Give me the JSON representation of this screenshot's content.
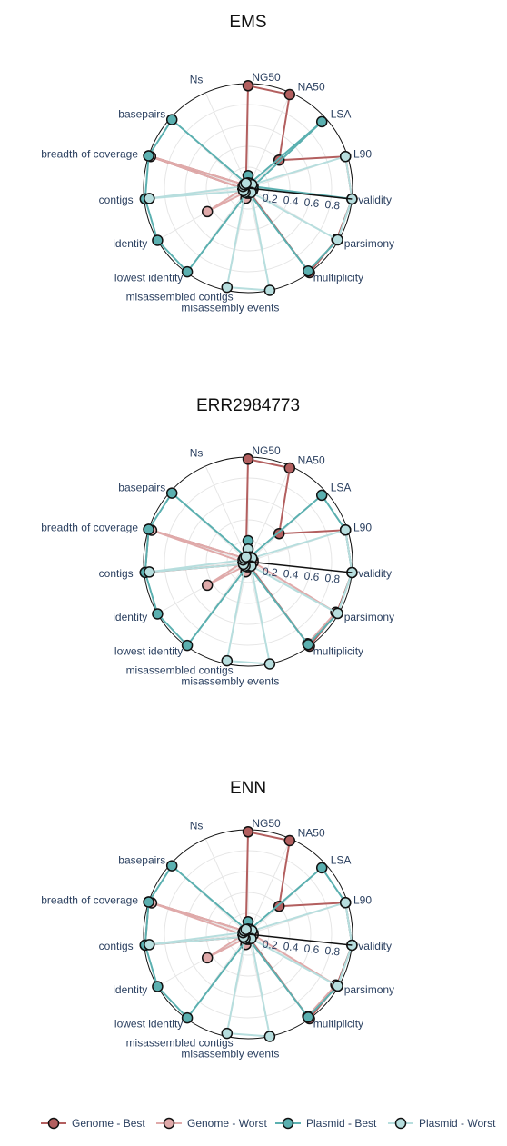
{
  "colors": {
    "genome_best": "#b35f5f",
    "genome_worst": "#e0aaaa",
    "plasmid_best": "#5bb0b0",
    "plasmid_worst": "#b7dede",
    "grid": "#e6e6e6",
    "outline": "#111111",
    "text": "#2a3f5f"
  },
  "chart_data": [
    {
      "type": "radar",
      "title": "EMS",
      "axes": [
        "NG50",
        "NA50",
        "LSA",
        "L90",
        "validity",
        "parsimony",
        "multiplicity",
        "misassembly events",
        "misassembled contigs",
        "lowest identity",
        "identity",
        "contigs",
        "breadth of coverage",
        "basepairs",
        "Ns"
      ],
      "radial_ticks": [
        "0.2",
        "0.4",
        "0.6",
        "0.8"
      ],
      "radial_range": [
        0,
        1
      ],
      "series": [
        {
          "name": "Genome - Best",
          "values": [
            0.98,
            0.98,
            0.4,
            0.98,
            1.0,
            0.98,
            1.0,
            0.03,
            0.05,
            0.05,
            0.05,
            0.05,
            1.0,
            0.05,
            0.05
          ]
        },
        {
          "name": "Genome - Worst",
          "values": [
            0.05,
            0.05,
            0.05,
            0.05,
            0.05,
            0.05,
            0.05,
            0.05,
            0.1,
            0.05,
            0.45,
            0.05,
            0.98,
            0.05,
            0.05
          ]
        },
        {
          "name": "Plasmid - Best",
          "values": [
            0.12,
            0.05,
            0.95,
            0.05,
            1.0,
            0.99,
            0.98,
            0.05,
            0.05,
            0.99,
            1.0,
            0.99,
            1.0,
            0.98,
            0.05
          ]
        },
        {
          "name": "Plasmid - Worst",
          "values": [
            0.05,
            0.05,
            0.05,
            0.98,
            1.0,
            0.99,
            0.05,
            1.0,
            0.97,
            0.05,
            0.05,
            0.95,
            0.05,
            0.05,
            0.05
          ]
        }
      ]
    },
    {
      "type": "radar",
      "title": "ERR2984773",
      "axes": [
        "NG50",
        "NA50",
        "LSA",
        "L90",
        "validity",
        "parsimony",
        "multiplicity",
        "misassembly events",
        "misassembled contigs",
        "lowest identity",
        "identity",
        "contigs",
        "breadth of coverage",
        "basepairs",
        "Ns"
      ],
      "radial_ticks": [
        "0.2",
        "0.4",
        "0.6",
        "0.8"
      ],
      "radial_range": [
        0,
        1
      ],
      "series": [
        {
          "name": "Genome - Best",
          "values": [
            0.98,
            0.98,
            0.4,
            0.98,
            1.0,
            0.98,
            1.0,
            0.03,
            0.05,
            0.05,
            0.05,
            0.99,
            1.0,
            0.05,
            0.05
          ]
        },
        {
          "name": "Genome - Worst",
          "values": [
            0.05,
            0.05,
            0.05,
            0.05,
            0.05,
            0.97,
            0.97,
            0.05,
            0.1,
            0.05,
            0.45,
            0.05,
            0.97,
            0.05,
            0.05
          ]
        },
        {
          "name": "Plasmid - Best",
          "values": [
            0.2,
            0.05,
            0.95,
            0.98,
            1.0,
            0.99,
            0.98,
            0.05,
            0.05,
            0.99,
            1.0,
            0.99,
            1.0,
            0.98,
            0.05
          ]
        },
        {
          "name": "Plasmid - Worst",
          "values": [
            0.12,
            0.05,
            0.05,
            0.98,
            1.0,
            0.99,
            0.05,
            1.0,
            0.97,
            0.05,
            0.05,
            0.95,
            0.05,
            0.05,
            0.05
          ]
        }
      ]
    },
    {
      "type": "radar",
      "title": "ENN",
      "axes": [
        "NG50",
        "NA50",
        "LSA",
        "L90",
        "validity",
        "parsimony",
        "multiplicity",
        "misassembly events",
        "misassembled contigs",
        "lowest identity",
        "identity",
        "contigs",
        "breadth of coverage",
        "basepairs",
        "Ns"
      ],
      "radial_ticks": [
        "0.2",
        "0.4",
        "0.6",
        "0.8"
      ],
      "radial_range": [
        0,
        1
      ],
      "series": [
        {
          "name": "Genome - Best",
          "values": [
            0.98,
            0.98,
            0.4,
            0.98,
            1.0,
            0.98,
            1.0,
            0.03,
            0.05,
            0.05,
            0.05,
            0.99,
            1.0,
            0.05,
            0.05
          ]
        },
        {
          "name": "Genome - Worst",
          "values": [
            0.05,
            0.05,
            0.05,
            0.05,
            0.05,
            0.97,
            0.97,
            0.05,
            0.1,
            0.05,
            0.45,
            0.05,
            0.97,
            0.05,
            0.05
          ]
        },
        {
          "name": "Plasmid - Best",
          "values": [
            0.12,
            0.05,
            0.95,
            0.98,
            1.0,
            0.99,
            0.98,
            0.05,
            0.05,
            0.99,
            1.0,
            0.99,
            1.0,
            0.98,
            0.05
          ]
        },
        {
          "name": "Plasmid - Worst",
          "values": [
            0.05,
            0.05,
            0.05,
            0.98,
            1.0,
            0.99,
            0.05,
            1.0,
            0.97,
            0.05,
            0.05,
            0.95,
            0.05,
            0.05,
            0.05
          ]
        }
      ]
    }
  ],
  "legend": {
    "placement": "bottom",
    "items": [
      {
        "label": "Genome - Best",
        "color_key": "genome_best"
      },
      {
        "label": "Genome - Worst",
        "color_key": "genome_worst"
      },
      {
        "label": "Plasmid - Best",
        "color_key": "plasmid_best"
      },
      {
        "label": "Plasmid - Worst",
        "color_key": "plasmid_worst"
      }
    ]
  }
}
